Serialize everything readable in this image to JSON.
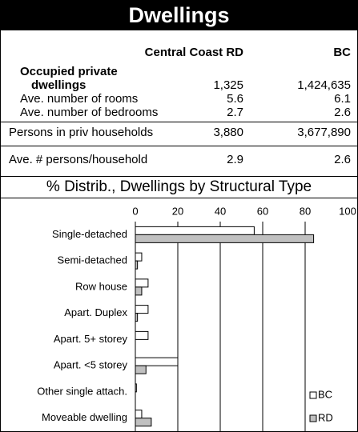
{
  "header": {
    "title": "Dwellings"
  },
  "table": {
    "columns": [
      "Central Coast RD",
      "BC"
    ],
    "rows": [
      [
        "Occupied private dwellings",
        "1,325",
        "1,424,635"
      ],
      [
        "Ave. number of rooms",
        "5.6",
        "6.1"
      ],
      [
        "Ave. number of bedrooms",
        "2.7",
        "2.6"
      ],
      [
        "Persons in priv households",
        "3,880",
        "3,677,890"
      ],
      [
        "Ave. # persons/household",
        "2.9",
        "2.6"
      ]
    ]
  },
  "chart_data": {
    "type": "bar",
    "orientation": "horizontal",
    "title": "% Distrib., Dwellings by Structural Type",
    "categories": [
      "Single-detached",
      "Semi-detached",
      "Row house",
      "Apart. Duplex",
      "Apart. 5+ storey",
      "Apart. <5 storey",
      "Other single attach.",
      "Moveable dwelling"
    ],
    "series": [
      {
        "name": "BC",
        "color": "#ffffff",
        "values": [
          56,
          3,
          6,
          6,
          6,
          20,
          0.5,
          3
        ]
      },
      {
        "name": "RD",
        "color": "#c0c0c0",
        "values": [
          84,
          1,
          3,
          1,
          0,
          5,
          0,
          7.5
        ]
      }
    ],
    "xlim": [
      0,
      100
    ],
    "xticks": [
      0,
      20,
      40,
      60,
      80,
      100
    ],
    "grid": true,
    "legend": "lower right"
  }
}
